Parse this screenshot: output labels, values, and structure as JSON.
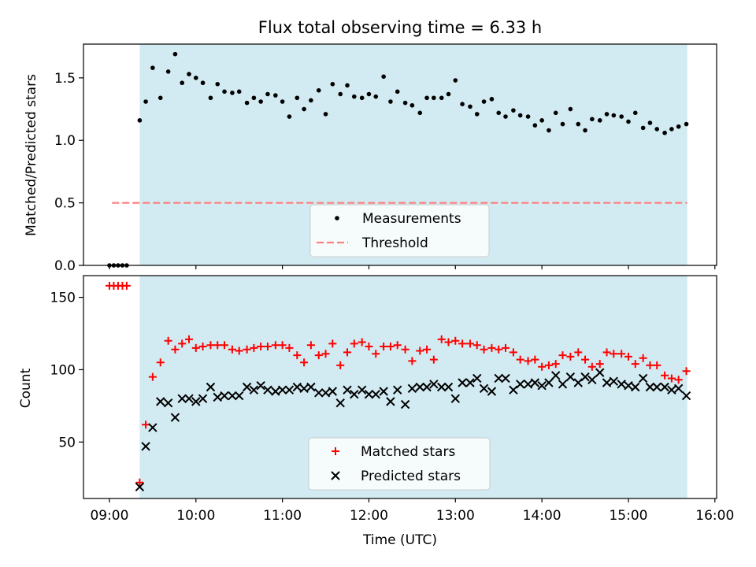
{
  "title": "Flux total observing time = 6.33 h",
  "colors": {
    "shade": "#add8e6",
    "measurement": "#000000",
    "threshold": "#ff7f7f",
    "matched": "#ff0000",
    "predicted": "#000000"
  },
  "chart_data": [
    {
      "type": "scatter",
      "ylabel": "Matched/Predicted stars",
      "xlim": [
        8.7,
        16.02
      ],
      "ylim": [
        0,
        1.77
      ],
      "yticks": [
        0.0,
        0.5,
        1.0,
        1.5
      ],
      "ytick_labels": [
        "0.0",
        "0.5",
        "1.0",
        "1.5"
      ],
      "shade_span": [
        9.35,
        15.68
      ],
      "legend_position": "lower center",
      "series": [
        {
          "name": "Measurements",
          "marker": "dot",
          "x": [
            9.0,
            9.05,
            9.1,
            9.15,
            9.2,
            9.35,
            9.42,
            9.5,
            9.59,
            9.68,
            9.76,
            9.84,
            9.92,
            10.0,
            10.08,
            10.17,
            10.25,
            10.33,
            10.42,
            10.5,
            10.59,
            10.67,
            10.75,
            10.83,
            10.92,
            11.0,
            11.08,
            11.17,
            11.25,
            11.33,
            11.42,
            11.5,
            11.58,
            11.67,
            11.75,
            11.83,
            11.92,
            12.0,
            12.08,
            12.17,
            12.25,
            12.33,
            12.42,
            12.5,
            12.59,
            12.67,
            12.75,
            12.84,
            12.92,
            13.0,
            13.08,
            13.17,
            13.25,
            13.33,
            13.42,
            13.5,
            13.58,
            13.67,
            13.75,
            13.84,
            13.92,
            14.0,
            14.08,
            14.16,
            14.24,
            14.33,
            14.42,
            14.5,
            14.58,
            14.67,
            14.75,
            14.83,
            14.92,
            15.0,
            15.08,
            15.17,
            15.25,
            15.33,
            15.42,
            15.5,
            15.58,
            15.67
          ],
          "y": [
            0.0,
            0.0,
            0.0,
            0.0,
            0.0,
            1.16,
            1.31,
            1.58,
            1.34,
            1.55,
            1.69,
            1.46,
            1.53,
            1.5,
            1.46,
            1.34,
            1.45,
            1.39,
            1.38,
            1.39,
            1.3,
            1.34,
            1.31,
            1.37,
            1.36,
            1.31,
            1.19,
            1.34,
            1.25,
            1.32,
            1.4,
            1.21,
            1.45,
            1.37,
            1.44,
            1.35,
            1.34,
            1.37,
            1.35,
            1.51,
            1.31,
            1.39,
            1.3,
            1.28,
            1.22,
            1.34,
            1.34,
            1.34,
            1.37,
            1.48,
            1.29,
            1.27,
            1.21,
            1.31,
            1.33,
            1.22,
            1.19,
            1.24,
            1.2,
            1.19,
            1.12,
            1.16,
            1.08,
            1.22,
            1.13,
            1.25,
            1.13,
            1.08,
            1.17,
            1.16,
            1.21,
            1.2,
            1.19,
            1.15,
            1.22,
            1.1,
            1.14,
            1.09,
            1.06,
            1.09,
            1.11,
            1.13
          ]
        },
        {
          "name": "Threshold",
          "marker": "dashed-line",
          "x": [
            9.03,
            15.68
          ],
          "y": [
            0.5,
            0.5
          ]
        }
      ]
    },
    {
      "type": "scatter",
      "xlabel": "Time (UTC)",
      "ylabel": "Count",
      "xlim": [
        8.7,
        16.02
      ],
      "ylim": [
        11,
        165
      ],
      "xticks": [
        9,
        10,
        11,
        12,
        13,
        14,
        15,
        16
      ],
      "xtick_labels": [
        "09:00",
        "10:00",
        "11:00",
        "12:00",
        "13:00",
        "14:00",
        "15:00",
        "16:00"
      ],
      "yticks": [
        50,
        100,
        150
      ],
      "ytick_labels": [
        "50",
        "100",
        "150"
      ],
      "shade_span": [
        9.35,
        15.68
      ],
      "legend_position": "lower center",
      "series": [
        {
          "name": "Matched stars",
          "marker": "plus",
          "x": [
            9.0,
            9.05,
            9.1,
            9.15,
            9.2,
            9.35,
            9.42,
            9.5,
            9.59,
            9.68,
            9.76,
            9.84,
            9.92,
            10.0,
            10.08,
            10.17,
            10.25,
            10.33,
            10.42,
            10.5,
            10.59,
            10.67,
            10.75,
            10.83,
            10.92,
            11.0,
            11.08,
            11.17,
            11.25,
            11.33,
            11.42,
            11.5,
            11.58,
            11.67,
            11.75,
            11.83,
            11.92,
            12.0,
            12.08,
            12.17,
            12.25,
            12.33,
            12.42,
            12.5,
            12.59,
            12.67,
            12.75,
            12.84,
            12.92,
            13.0,
            13.08,
            13.17,
            13.25,
            13.33,
            13.42,
            13.5,
            13.58,
            13.67,
            13.75,
            13.84,
            13.92,
            14.0,
            14.08,
            14.16,
            14.24,
            14.33,
            14.42,
            14.5,
            14.58,
            14.67,
            14.75,
            14.83,
            14.92,
            15.0,
            15.08,
            15.17,
            15.25,
            15.33,
            15.42,
            15.5,
            15.58,
            15.67
          ],
          "y": [
            158,
            158,
            158,
            158,
            158,
            22,
            62,
            95,
            105,
            120,
            114,
            118,
            121,
            115,
            116,
            117,
            117,
            117,
            114,
            113,
            114,
            115,
            116,
            116,
            117,
            117,
            115,
            110,
            105,
            117,
            110,
            111,
            118,
            103,
            112,
            118,
            119,
            116,
            111,
            116,
            116,
            117,
            114,
            106,
            113,
            114,
            107,
            121,
            119,
            120,
            118,
            118,
            117,
            114,
            115,
            114,
            115,
            112,
            107,
            106,
            107,
            102,
            103,
            104,
            110,
            109,
            112,
            107,
            102,
            104,
            112,
            111,
            111,
            109,
            104,
            108,
            103,
            103,
            96,
            94,
            93,
            99
          ]
        },
        {
          "name": "Predicted stars",
          "marker": "x",
          "x": [
            9.35,
            9.42,
            9.5,
            9.59,
            9.68,
            9.76,
            9.84,
            9.92,
            10.0,
            10.08,
            10.17,
            10.25,
            10.33,
            10.42,
            10.5,
            10.59,
            10.67,
            10.75,
            10.83,
            10.92,
            11.0,
            11.08,
            11.17,
            11.25,
            11.33,
            11.42,
            11.5,
            11.58,
            11.67,
            11.75,
            11.83,
            11.92,
            12.0,
            12.08,
            12.17,
            12.25,
            12.33,
            12.42,
            12.5,
            12.59,
            12.67,
            12.75,
            12.84,
            12.92,
            13.0,
            13.08,
            13.17,
            13.25,
            13.33,
            13.42,
            13.5,
            13.58,
            13.67,
            13.75,
            13.84,
            13.92,
            14.0,
            14.08,
            14.16,
            14.24,
            14.33,
            14.42,
            14.5,
            14.58,
            14.67,
            14.75,
            14.83,
            14.92,
            15.0,
            15.08,
            15.17,
            15.25,
            15.33,
            15.42,
            15.5,
            15.58,
            15.67
          ],
          "y": [
            19,
            47,
            60,
            78,
            77,
            67,
            80,
            80,
            78,
            80,
            88,
            81,
            82,
            82,
            82,
            88,
            86,
            89,
            86,
            85,
            86,
            86,
            88,
            87,
            88,
            84,
            84,
            85,
            77,
            86,
            83,
            86,
            83,
            83,
            85,
            78,
            86,
            76,
            87,
            88,
            88,
            90,
            88,
            88,
            80,
            91,
            91,
            94,
            87,
            85,
            94,
            94,
            86,
            90,
            90,
            91,
            89,
            91,
            96,
            90,
            95,
            91,
            95,
            93,
            98,
            91,
            92,
            90,
            89,
            88,
            94,
            88,
            88,
            88,
            86,
            87,
            82
          ]
        }
      ]
    }
  ]
}
